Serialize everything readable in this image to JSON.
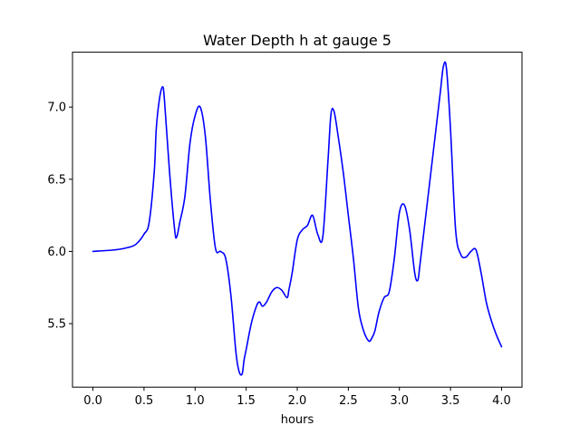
{
  "chart_data": {
    "type": "line",
    "title": "Water Depth h at gauge 5",
    "xlabel": "hours",
    "ylabel": "",
    "xlim": [
      -0.2,
      4.2
    ],
    "ylim": [
      5.06,
      7.38
    ],
    "xticks": [
      0.0,
      0.5,
      1.0,
      1.5,
      2.0,
      2.5,
      3.0,
      3.5,
      4.0
    ],
    "xtick_labels": [
      "0.0",
      "0.5",
      "1.0",
      "1.5",
      "2.0",
      "2.5",
      "3.0",
      "3.5",
      "4.0"
    ],
    "yticks": [
      5.5,
      6.0,
      6.5,
      7.0
    ],
    "ytick_labels": [
      "5.5",
      "6.0",
      "6.5",
      "7.0"
    ],
    "grid": false,
    "series": [
      {
        "color": "#0000ff",
        "x": [
          0.0,
          0.2,
          0.3,
          0.4,
          0.45,
          0.5,
          0.55,
          0.6,
          0.62,
          0.65,
          0.68,
          0.7,
          0.75,
          0.8,
          0.82,
          0.85,
          0.9,
          0.95,
          1.0,
          1.05,
          1.1,
          1.15,
          1.2,
          1.25,
          1.3,
          1.35,
          1.4,
          1.43,
          1.46,
          1.48,
          1.5,
          1.55,
          1.6,
          1.63,
          1.66,
          1.7,
          1.75,
          1.8,
          1.85,
          1.9,
          1.92,
          1.95,
          2.0,
          2.05,
          2.1,
          2.15,
          2.2,
          2.25,
          2.3,
          2.33,
          2.36,
          2.4,
          2.45,
          2.5,
          2.55,
          2.6,
          2.65,
          2.7,
          2.73,
          2.76,
          2.8,
          2.85,
          2.9,
          2.95,
          3.0,
          3.05,
          3.1,
          3.15,
          3.18,
          3.2,
          3.25,
          3.3,
          3.35,
          3.4,
          3.43,
          3.46,
          3.5,
          3.55,
          3.6,
          3.65,
          3.7,
          3.75,
          3.8,
          3.85,
          3.9,
          3.95,
          4.0
        ],
        "y": [
          6.0,
          6.01,
          6.02,
          6.04,
          6.07,
          6.12,
          6.2,
          6.55,
          6.85,
          7.05,
          7.14,
          7.05,
          6.55,
          6.15,
          6.1,
          6.2,
          6.38,
          6.75,
          6.94,
          7.0,
          6.8,
          6.35,
          6.02,
          6.0,
          5.95,
          5.7,
          5.3,
          5.17,
          5.15,
          5.25,
          5.32,
          5.5,
          5.62,
          5.65,
          5.62,
          5.65,
          5.72,
          5.75,
          5.73,
          5.68,
          5.74,
          5.85,
          6.08,
          6.15,
          6.18,
          6.25,
          6.12,
          6.1,
          6.62,
          6.95,
          6.97,
          6.8,
          6.55,
          6.25,
          5.95,
          5.6,
          5.45,
          5.38,
          5.4,
          5.45,
          5.58,
          5.68,
          5.72,
          5.95,
          6.27,
          6.32,
          6.15,
          5.85,
          5.8,
          5.9,
          6.2,
          6.5,
          6.8,
          7.1,
          7.28,
          7.27,
          6.85,
          6.15,
          5.98,
          5.96,
          6.0,
          6.01,
          5.85,
          5.65,
          5.52,
          5.42,
          5.34
        ]
      }
    ]
  }
}
